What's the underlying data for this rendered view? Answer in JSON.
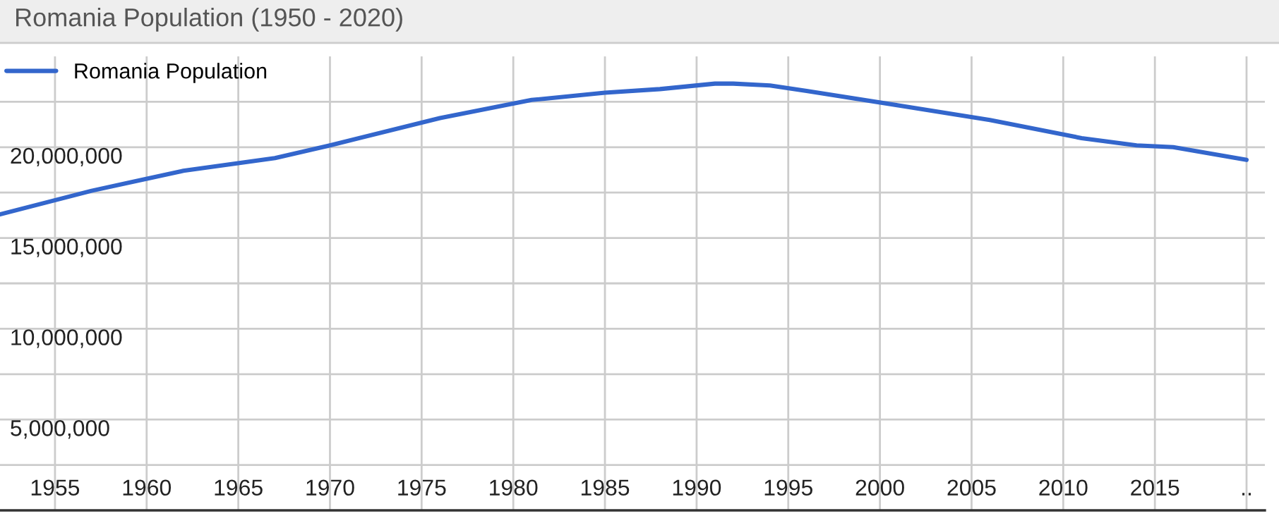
{
  "chart_data": {
    "type": "line",
    "title": "Romania Population (1950 - 2020)",
    "x": [
      1952,
      1957,
      1962,
      1967,
      1970,
      1976,
      1981,
      1985,
      1988,
      1991,
      1992,
      1994,
      1996,
      2001,
      2006,
      2011,
      2014,
      2016,
      2020
    ],
    "series": [
      {
        "name": "Romania Population",
        "color": "#3366cc",
        "values": [
          16300000,
          17600000,
          18700000,
          19400000,
          20100000,
          21600000,
          22600000,
          23000000,
          23200000,
          23500000,
          23500000,
          23400000,
          23100000,
          22300000,
          21500000,
          20500000,
          20100000,
          20000000,
          19300000
        ]
      }
    ],
    "xlim": [
      1952,
      2021
    ],
    "xticks": [
      1955,
      1960,
      1965,
      1970,
      1975,
      1980,
      1985,
      1990,
      1995,
      2000,
      2005,
      2010,
      2015,
      {
        "value": 2020,
        "label": ".."
      }
    ],
    "ylim": [
      0,
      25000000
    ],
    "yticks": [
      {
        "value": 2500000,
        "label": null
      },
      {
        "value": 5000000,
        "label": "5,000,000"
      },
      {
        "value": 7500000,
        "label": null
      },
      {
        "value": 10000000,
        "label": "10,000,000"
      },
      {
        "value": 12500000,
        "label": null
      },
      {
        "value": 15000000,
        "label": "15,000,000"
      },
      {
        "value": 17500000,
        "label": null
      },
      {
        "value": 20000000,
        "label": "20,000,000"
      },
      {
        "value": 22500000,
        "label": null
      }
    ],
    "grid": true,
    "legend": "top left",
    "marker": "none",
    "line_style": "solid"
  }
}
